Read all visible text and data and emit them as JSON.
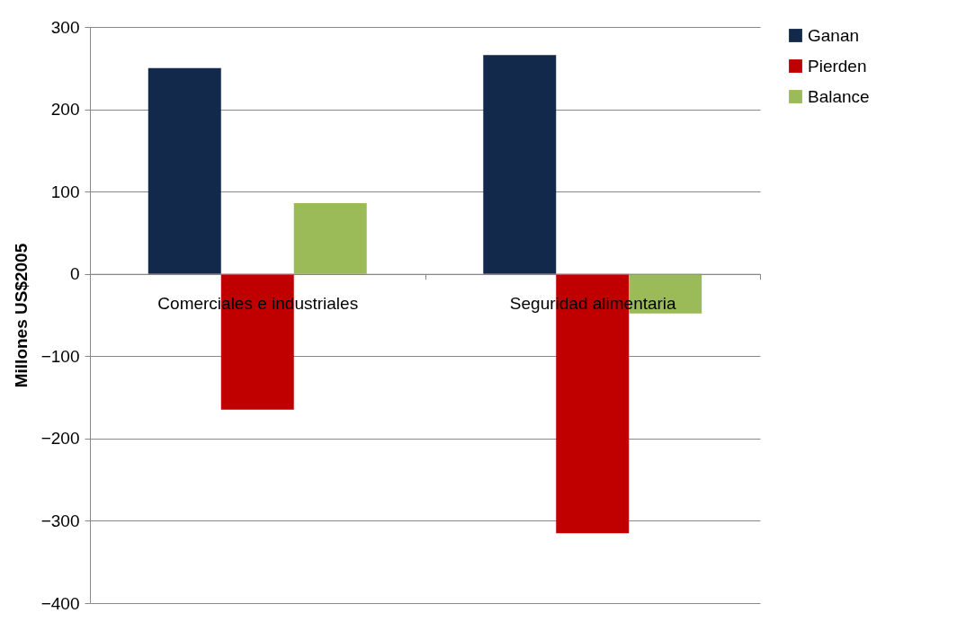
{
  "chart_data": {
    "type": "bar",
    "ylabel": "Millones US$2005",
    "categories": [
      "Comerciales e industriales",
      "Seguridad alimentaria"
    ],
    "series": [
      {
        "name": "Ganan",
        "color": "#13294b",
        "values": [
          250,
          266
        ]
      },
      {
        "name": "Pierden",
        "color": "#c00000",
        "values": [
          -165,
          -315
        ]
      },
      {
        "name": "Balance",
        "color": "#9bbb59",
        "values": [
          86,
          -48
        ]
      }
    ],
    "ylim": [
      -400,
      300
    ],
    "yticks": [
      -400,
      -300,
      -200,
      -100,
      0,
      100,
      200,
      300
    ],
    "grid": "y",
    "legend": "right"
  }
}
